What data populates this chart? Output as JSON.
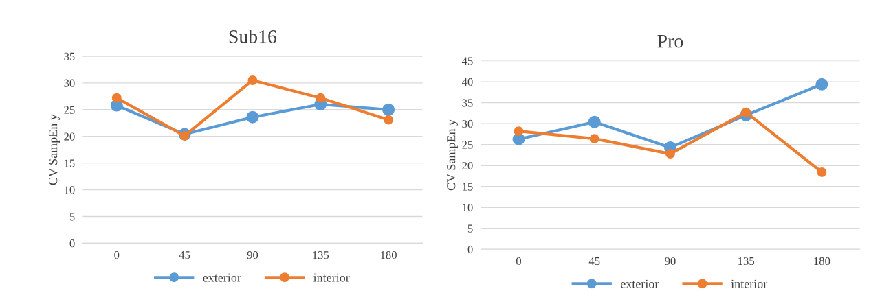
{
  "chart_data": [
    {
      "type": "line",
      "title": "Sub16",
      "ylabel": "CV SampEn y",
      "categories": [
        "0",
        "45",
        "90",
        "135",
        "180"
      ],
      "ylim": [
        0,
        35
      ],
      "yticks": [
        0,
        5,
        10,
        15,
        20,
        25,
        30,
        35
      ],
      "grid": "y",
      "legend": "bottom",
      "marker": "circle",
      "line_style": "solid",
      "series": [
        {
          "name": "exterior",
          "color": "#5b9bd5",
          "values": [
            25.8,
            20.4,
            23.6,
            26.0,
            25.0
          ]
        },
        {
          "name": "interior",
          "color": "#ed7d31",
          "values": [
            27.2,
            20.1,
            30.5,
            27.2,
            23.1
          ]
        }
      ]
    },
    {
      "type": "line",
      "title": "Pro",
      "ylabel": "CV SampEn y",
      "categories": [
        "0",
        "45",
        "90",
        "135",
        "180"
      ],
      "ylim": [
        0,
        45
      ],
      "yticks": [
        0,
        5,
        10,
        15,
        20,
        25,
        30,
        35,
        40,
        45
      ],
      "grid": "y",
      "legend": "bottom",
      "marker": "circle",
      "line_style": "solid",
      "series": [
        {
          "name": "exterior",
          "color": "#5b9bd5",
          "values": [
            26.3,
            30.4,
            24.3,
            32.0,
            39.4
          ]
        },
        {
          "name": "interior",
          "color": "#ed7d31",
          "values": [
            28.2,
            26.4,
            22.8,
            32.7,
            18.4
          ]
        }
      ]
    }
  ]
}
